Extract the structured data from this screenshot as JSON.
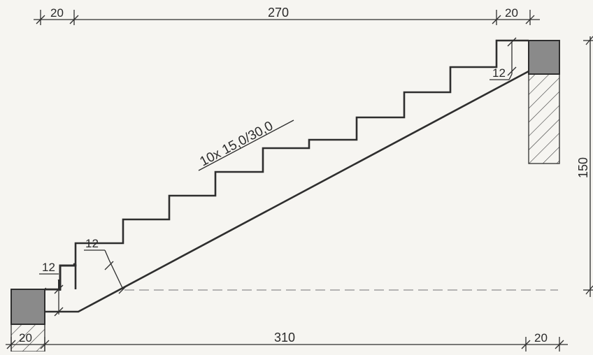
{
  "drawing": {
    "top_dims": {
      "left_support": "20",
      "span": "270",
      "right_support": "20"
    },
    "bottom_dims": {
      "left_support": "20",
      "span": "310",
      "right_support": "20"
    },
    "height_dim": "150",
    "thickness_labels": {
      "lower_left": "12",
      "lower_mid": "12",
      "upper_right": "12"
    },
    "step_spec": "10x 15,0/30,0",
    "colors": {
      "line": "#2e2e2e",
      "concrete_block": "#8a8a8a",
      "dashed": "#8c8c8c",
      "background": "#f6f5f1"
    }
  }
}
